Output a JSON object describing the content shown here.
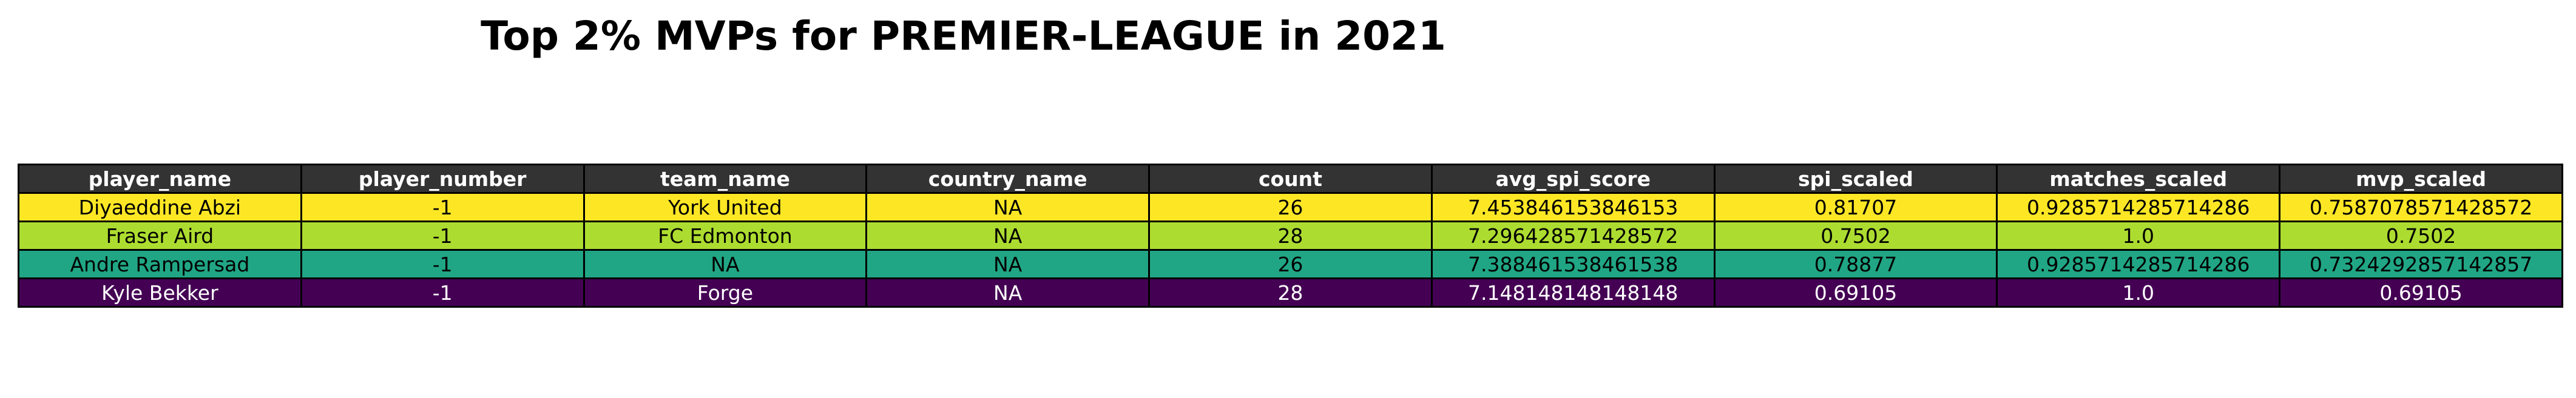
{
  "colors": {
    "header_bg": "#333333",
    "header_text": "#ffffff",
    "row_backgrounds": [
      "#fde725",
      "#addc30",
      "#21a685",
      "#440154"
    ],
    "row_text": [
      "#000000",
      "#000000",
      "#000000",
      "#ffffff"
    ]
  },
  "chart_data": {
    "type": "table",
    "title": "Top 2% MVPs for PREMIER-LEAGUE in 2021",
    "columns": [
      "player_name",
      "player_number",
      "team_name",
      "country_name",
      "count",
      "avg_spi_score",
      "spi_scaled",
      "matches_scaled",
      "mvp_scaled"
    ],
    "rows": [
      [
        "Diyaeddine Abzi",
        "-1",
        "York United",
        "NA",
        "26",
        "7.453846153846153",
        "0.81707",
        "0.9285714285714286",
        "0.7587078571428572"
      ],
      [
        "Fraser Aird",
        "-1",
        "FC Edmonton",
        "NA",
        "28",
        "7.296428571428572",
        "0.7502",
        "1.0",
        "0.7502"
      ],
      [
        "Andre Rampersad",
        "-1",
        "NA",
        "NA",
        "26",
        "7.388461538461538",
        "0.78877",
        "0.9285714285714286",
        "0.7324292857142857"
      ],
      [
        "Kyle Bekker",
        "-1",
        "Forge",
        "NA",
        "28",
        "7.148148148148148",
        "0.69105",
        "1.0",
        "0.69105"
      ]
    ]
  }
}
